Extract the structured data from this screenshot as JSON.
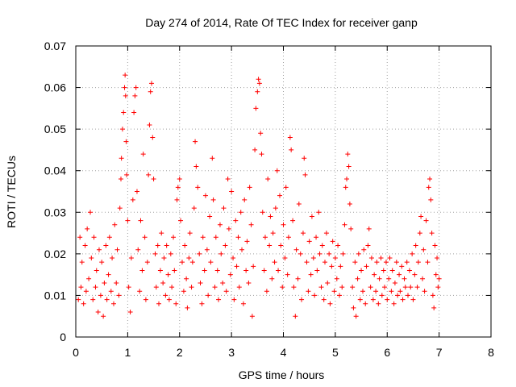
{
  "chart_data": {
    "type": "scatter",
    "title": "Day 274 of 2014, Rate Of TEC Index for receiver ganp",
    "xlabel": "GPS time / hours",
    "ylabel": "ROTI / TECUs",
    "xlim": [
      0,
      8
    ],
    "ylim": [
      0,
      0.07
    ],
    "grid": true,
    "marker": "plus",
    "color": "#ff0000",
    "x_ticks": [
      0,
      1,
      2,
      3,
      4,
      5,
      6,
      7,
      8
    ],
    "x_tick_labels": [
      "0",
      "1",
      "2",
      "3",
      "4",
      "5",
      "6",
      "7",
      "8"
    ],
    "y_ticks": [
      0,
      0.01,
      0.02,
      0.03,
      0.04,
      0.05,
      0.06,
      0.07
    ],
    "y_tick_labels": [
      "0",
      "0.01",
      "0.02",
      "0.03",
      "0.04",
      "0.05",
      "0.06",
      "0.07"
    ],
    "series": [
      {
        "name": "ROTI",
        "points": [
          [
            0.05,
            0.009
          ],
          [
            0.08,
            0.024
          ],
          [
            0.1,
            0.012
          ],
          [
            0.12,
            0.018
          ],
          [
            0.15,
            0.008
          ],
          [
            0.18,
            0.022
          ],
          [
            0.2,
            0.011
          ],
          [
            0.22,
            0.026
          ],
          [
            0.25,
            0.014
          ],
          [
            0.28,
            0.03
          ],
          [
            0.3,
            0.019
          ],
          [
            0.33,
            0.009
          ],
          [
            0.35,
            0.024
          ],
          [
            0.38,
            0.012
          ],
          [
            0.4,
            0.016
          ],
          [
            0.43,
            0.006
          ],
          [
            0.45,
            0.021
          ],
          [
            0.48,
            0.01
          ],
          [
            0.5,
            0.018
          ],
          [
            0.53,
            0.005
          ],
          [
            0.55,
            0.013
          ],
          [
            0.58,
            0.022
          ],
          [
            0.6,
            0.009
          ],
          [
            0.63,
            0.015
          ],
          [
            0.65,
            0.024
          ],
          [
            0.68,
            0.011
          ],
          [
            0.7,
            0.019
          ],
          [
            0.73,
            0.008
          ],
          [
            0.75,
            0.027
          ],
          [
            0.78,
            0.013
          ],
          [
            0.8,
            0.021
          ],
          [
            0.83,
            0.01
          ],
          [
            0.85,
            0.031
          ],
          [
            0.87,
            0.038
          ],
          [
            0.88,
            0.043
          ],
          [
            0.9,
            0.05
          ],
          [
            0.92,
            0.054
          ],
          [
            0.94,
            0.06
          ],
          [
            0.95,
            0.063
          ],
          [
            0.96,
            0.058
          ],
          [
            0.97,
            0.047
          ],
          [
            0.98,
            0.039
          ],
          [
            1.0,
            0.028
          ],
          [
            1.02,
            0.012
          ],
          [
            1.05,
            0.006
          ],
          [
            1.07,
            0.019
          ],
          [
            1.1,
            0.033
          ],
          [
            1.12,
            0.054
          ],
          [
            1.14,
            0.058
          ],
          [
            1.16,
            0.06
          ],
          [
            1.18,
            0.035
          ],
          [
            1.2,
            0.021
          ],
          [
            1.23,
            0.011
          ],
          [
            1.25,
            0.028
          ],
          [
            1.28,
            0.016
          ],
          [
            1.3,
            0.044
          ],
          [
            1.33,
            0.024
          ],
          [
            1.35,
            0.009
          ],
          [
            1.38,
            0.018
          ],
          [
            1.4,
            0.039
          ],
          [
            1.42,
            0.051
          ],
          [
            1.44,
            0.059
          ],
          [
            1.46,
            0.061
          ],
          [
            1.48,
            0.048
          ],
          [
            1.5,
            0.038
          ],
          [
            1.53,
            0.02
          ],
          [
            1.55,
            0.012
          ],
          [
            1.58,
            0.022
          ],
          [
            1.6,
            0.008
          ],
          [
            1.63,
            0.016
          ],
          [
            1.65,
            0.025
          ],
          [
            1.68,
            0.013
          ],
          [
            1.7,
            0.019
          ],
          [
            1.73,
            0.01
          ],
          [
            1.75,
            0.022
          ],
          [
            1.78,
            0.015
          ],
          [
            1.8,
            0.009
          ],
          [
            1.83,
            0.02
          ],
          [
            1.85,
            0.012
          ],
          [
            1.88,
            0.024
          ],
          [
            1.9,
            0.016
          ],
          [
            1.93,
            0.008
          ],
          [
            1.95,
            0.033
          ],
          [
            1.97,
            0.036
          ],
          [
            2.0,
            0.038
          ],
          [
            2.02,
            0.028
          ],
          [
            2.05,
            0.018
          ],
          [
            2.08,
            0.011
          ],
          [
            2.1,
            0.022
          ],
          [
            2.13,
            0.014
          ],
          [
            2.15,
            0.007
          ],
          [
            2.18,
            0.019
          ],
          [
            2.2,
            0.025
          ],
          [
            2.23,
            0.012
          ],
          [
            2.25,
            0.018
          ],
          [
            2.28,
            0.031
          ],
          [
            2.3,
            0.047
          ],
          [
            2.32,
            0.041
          ],
          [
            2.35,
            0.036
          ],
          [
            2.38,
            0.02
          ],
          [
            2.4,
            0.013
          ],
          [
            2.43,
            0.008
          ],
          [
            2.45,
            0.024
          ],
          [
            2.48,
            0.016
          ],
          [
            2.5,
            0.034
          ],
          [
            2.53,
            0.021
          ],
          [
            2.55,
            0.01
          ],
          [
            2.58,
            0.029
          ],
          [
            2.6,
            0.018
          ],
          [
            2.63,
            0.043
          ],
          [
            2.65,
            0.033
          ],
          [
            2.68,
            0.012
          ],
          [
            2.7,
            0.024
          ],
          [
            2.73,
            0.016
          ],
          [
            2.75,
            0.009
          ],
          [
            2.78,
            0.027
          ],
          [
            2.8,
            0.02
          ],
          [
            2.83,
            0.013
          ],
          [
            2.85,
            0.031
          ],
          [
            2.88,
            0.022
          ],
          [
            2.9,
            0.011
          ],
          [
            2.93,
            0.038
          ],
          [
            2.95,
            0.026
          ],
          [
            2.98,
            0.015
          ],
          [
            3.0,
            0.035
          ],
          [
            3.03,
            0.019
          ],
          [
            3.05,
            0.009
          ],
          [
            3.08,
            0.028
          ],
          [
            3.1,
            0.017
          ],
          [
            3.13,
            0.024
          ],
          [
            3.15,
            0.012
          ],
          [
            3.18,
            0.03
          ],
          [
            3.2,
            0.021
          ],
          [
            3.23,
            0.008
          ],
          [
            3.25,
            0.033
          ],
          [
            3.28,
            0.016
          ],
          [
            3.3,
            0.023
          ],
          [
            3.33,
            0.013
          ],
          [
            3.35,
            0.036
          ],
          [
            3.38,
            0.027
          ],
          [
            3.4,
            0.005
          ],
          [
            3.42,
            0.017
          ],
          [
            3.45,
            0.045
          ],
          [
            3.47,
            0.055
          ],
          [
            3.5,
            0.059
          ],
          [
            3.52,
            0.062
          ],
          [
            3.54,
            0.061
          ],
          [
            3.56,
            0.049
          ],
          [
            3.58,
            0.044
          ],
          [
            3.6,
            0.03
          ],
          [
            3.63,
            0.016
          ],
          [
            3.65,
            0.024
          ],
          [
            3.68,
            0.011
          ],
          [
            3.7,
            0.038
          ],
          [
            3.73,
            0.022
          ],
          [
            3.75,
            0.029
          ],
          [
            3.78,
            0.014
          ],
          [
            3.8,
            0.025
          ],
          [
            3.83,
            0.018
          ],
          [
            3.85,
            0.031
          ],
          [
            3.88,
            0.04
          ],
          [
            3.9,
            0.016
          ],
          [
            3.93,
            0.034
          ],
          [
            3.95,
            0.022
          ],
          [
            3.98,
            0.012
          ],
          [
            4.0,
            0.027
          ],
          [
            4.03,
            0.019
          ],
          [
            4.05,
            0.036
          ],
          [
            4.08,
            0.015
          ],
          [
            4.1,
            0.024
          ],
          [
            4.13,
            0.048
          ],
          [
            4.15,
            0.045
          ],
          [
            4.18,
            0.028
          ],
          [
            4.2,
            0.012
          ],
          [
            4.23,
            0.005
          ],
          [
            4.25,
            0.021
          ],
          [
            4.28,
            0.014
          ],
          [
            4.3,
            0.032
          ],
          [
            4.33,
            0.02
          ],
          [
            4.35,
            0.009
          ],
          [
            4.38,
            0.025
          ],
          [
            4.4,
            0.043
          ],
          [
            4.42,
            0.039
          ],
          [
            4.45,
            0.018
          ],
          [
            4.48,
            0.011
          ],
          [
            4.5,
            0.023
          ],
          [
            4.53,
            0.015
          ],
          [
            4.55,
            0.029
          ],
          [
            4.58,
            0.019
          ],
          [
            4.6,
            0.01
          ],
          [
            4.63,
            0.024
          ],
          [
            4.65,
            0.016
          ],
          [
            4.68,
            0.03
          ],
          [
            4.7,
            0.02
          ],
          [
            4.73,
            0.012
          ],
          [
            4.75,
            0.022
          ],
          [
            4.78,
            0.009
          ],
          [
            4.8,
            0.018
          ],
          [
            4.83,
            0.025
          ],
          [
            4.85,
            0.013
          ],
          [
            4.88,
            0.02
          ],
          [
            4.9,
            0.008
          ],
          [
            4.93,
            0.017
          ],
          [
            4.95,
            0.023
          ],
          [
            4.98,
            0.011
          ],
          [
            5.0,
            0.019
          ],
          [
            5.03,
            0.014
          ],
          [
            5.05,
            0.022
          ],
          [
            5.08,
            0.01
          ],
          [
            5.1,
            0.017
          ],
          [
            5.13,
            0.012
          ],
          [
            5.15,
            0.02
          ],
          [
            5.18,
            0.027
          ],
          [
            5.2,
            0.036
          ],
          [
            5.22,
            0.038
          ],
          [
            5.24,
            0.044
          ],
          [
            5.26,
            0.041
          ],
          [
            5.28,
            0.032
          ],
          [
            5.3,
            0.026
          ],
          [
            5.33,
            0.012
          ],
          [
            5.35,
            0.007
          ],
          [
            5.38,
            0.018
          ],
          [
            5.4,
            0.005
          ],
          [
            5.43,
            0.014
          ],
          [
            5.45,
            0.02
          ],
          [
            5.48,
            0.009
          ],
          [
            5.5,
            0.016
          ],
          [
            5.53,
            0.011
          ],
          [
            5.55,
            0.021
          ],
          [
            5.58,
            0.008
          ],
          [
            5.6,
            0.017
          ],
          [
            5.63,
            0.022
          ],
          [
            5.65,
            0.026
          ],
          [
            5.68,
            0.012
          ],
          [
            5.7,
            0.019
          ],
          [
            5.73,
            0.009
          ],
          [
            5.75,
            0.015
          ],
          [
            5.78,
            0.011
          ],
          [
            5.8,
            0.018
          ],
          [
            5.83,
            0.008
          ],
          [
            5.85,
            0.014
          ],
          [
            5.88,
            0.019
          ],
          [
            5.9,
            0.01
          ],
          [
            5.93,
            0.016
          ],
          [
            5.95,
            0.012
          ],
          [
            5.98,
            0.018
          ],
          [
            6.0,
            0.009
          ],
          [
            6.03,
            0.014
          ],
          [
            6.05,
            0.019
          ],
          [
            6.08,
            0.011
          ],
          [
            6.1,
            0.016
          ],
          [
            6.13,
            0.008
          ],
          [
            6.15,
            0.013
          ],
          [
            6.18,
            0.018
          ],
          [
            6.2,
            0.01
          ],
          [
            6.23,
            0.015
          ],
          [
            6.25,
            0.011
          ],
          [
            6.28,
            0.017
          ],
          [
            6.3,
            0.009
          ],
          [
            6.33,
            0.014
          ],
          [
            6.35,
            0.012
          ],
          [
            6.38,
            0.018
          ],
          [
            6.4,
            0.01
          ],
          [
            6.43,
            0.016
          ],
          [
            6.45,
            0.012
          ],
          [
            6.48,
            0.02
          ],
          [
            6.5,
            0.009
          ],
          [
            6.53,
            0.015
          ],
          [
            6.55,
            0.022
          ],
          [
            6.58,
            0.012
          ],
          [
            6.6,
            0.018
          ],
          [
            6.63,
            0.025
          ],
          [
            6.65,
            0.029
          ],
          [
            6.68,
            0.014
          ],
          [
            6.7,
            0.021
          ],
          [
            6.72,
            0.011
          ],
          [
            6.75,
            0.028
          ],
          [
            6.78,
            0.018
          ],
          [
            6.8,
            0.036
          ],
          [
            6.82,
            0.038
          ],
          [
            6.84,
            0.033
          ],
          [
            6.86,
            0.025
          ],
          [
            6.88,
            0.01
          ],
          [
            6.9,
            0.007
          ],
          [
            6.92,
            0.022
          ],
          [
            6.94,
            0.015
          ],
          [
            6.96,
            0.019
          ],
          [
            6.98,
            0.012
          ],
          [
            7.0,
            0.014
          ]
        ]
      }
    ]
  }
}
